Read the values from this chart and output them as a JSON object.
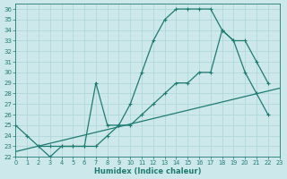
{
  "bg_color": "#cce8eb",
  "grid_color": "#b0d8dc",
  "line_color": "#1e7b72",
  "xlabel": "Humidex (Indice chaleur)",
  "xlim": [
    0,
    23
  ],
  "ylim": [
    22,
    36.5
  ],
  "xticks": [
    0,
    1,
    2,
    3,
    4,
    5,
    6,
    7,
    8,
    9,
    10,
    11,
    12,
    13,
    14,
    15,
    16,
    17,
    18,
    19,
    20,
    21,
    22,
    23
  ],
  "yticks": [
    22,
    23,
    24,
    25,
    26,
    27,
    28,
    29,
    30,
    31,
    32,
    33,
    34,
    35,
    36
  ],
  "series": [
    {
      "x": [
        0,
        1,
        2,
        3,
        4,
        5,
        6,
        7,
        8,
        9,
        10,
        11,
        12,
        13,
        14,
        15,
        16,
        17,
        18,
        19,
        20,
        21,
        22
      ],
      "y": [
        25,
        24,
        23,
        23,
        23,
        23,
        23,
        23,
        24,
        25,
        27,
        30,
        33,
        35,
        36,
        36,
        36,
        36,
        34,
        33,
        30,
        28,
        26
      ],
      "marker": true
    },
    {
      "x": [
        2,
        3,
        4,
        5,
        6,
        7,
        8,
        9,
        10,
        11,
        12,
        13,
        14,
        15,
        16,
        17,
        18,
        19,
        20,
        21,
        22
      ],
      "y": [
        23,
        22,
        23,
        23,
        23,
        29,
        25,
        25,
        25,
        26,
        27,
        28,
        29,
        29,
        30,
        30,
        34,
        33,
        33,
        31,
        29
      ],
      "marker": true
    },
    {
      "x": [
        0,
        23
      ],
      "y": [
        22.5,
        28.5
      ],
      "marker": false
    }
  ]
}
